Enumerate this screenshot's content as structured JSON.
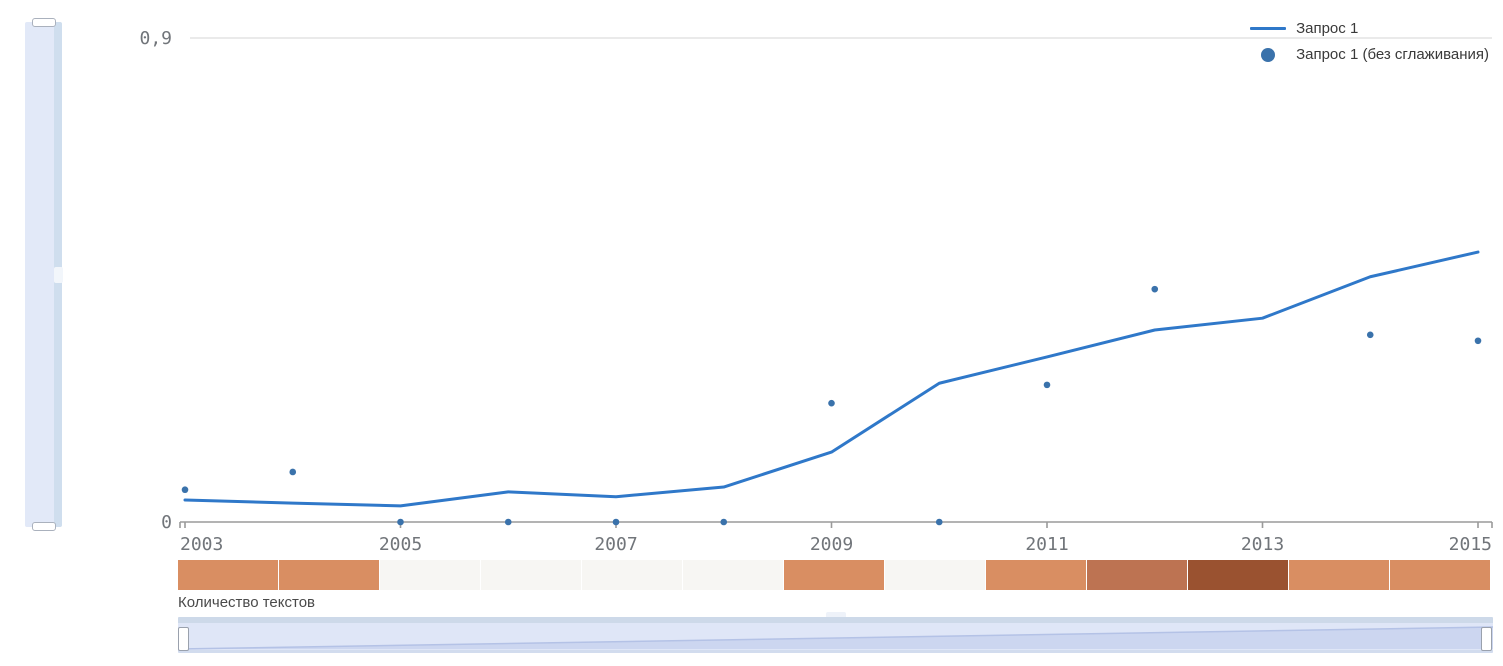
{
  "legend": {
    "items": [
      {
        "label": "Запрос 1"
      },
      {
        "label": "Запрос 1 (без сглаживания)"
      }
    ]
  },
  "chart_data": {
    "type": "line",
    "title": "",
    "xlabel": "",
    "ylabel": "",
    "x": [
      2003,
      2004,
      2005,
      2006,
      2007,
      2008,
      2009,
      2010,
      2011,
      2012,
      2013,
      2014,
      2015
    ],
    "series": [
      {
        "name": "Запрос 1",
        "type": "line",
        "color": "#2f78c9",
        "values": [
          0.041,
          0.035,
          0.03,
          0.056,
          0.047,
          0.065,
          0.13,
          0.258,
          0.307,
          0.357,
          0.379,
          0.456,
          0.502
        ]
      },
      {
        "name": "Запрос 1 (без сглаживания)",
        "type": "scatter",
        "color": "#3a72ab",
        "values": [
          0.06,
          0.093,
          0,
          0,
          0,
          0,
          0.221,
          0,
          0.255,
          0.433,
          null,
          0.348,
          0.337
        ]
      }
    ],
    "ylim": [
      0,
      0.9
    ],
    "yticks": [
      {
        "value": 0.9,
        "label": "0,9"
      },
      {
        "value": 0,
        "label": "0"
      }
    ],
    "xticks": [
      2003,
      2005,
      2007,
      2009,
      2011,
      2013,
      2015
    ],
    "grid": "single horizontal gridline at top (0,9)",
    "legend_position": "top-right",
    "text_counts": {
      "label": "Количество текстов",
      "palette": {
        "0": "#f7f6f3",
        "2": "#d98e62",
        "3": "#bd7352",
        "4": "#9a5230"
      },
      "cells": [
        {
          "year": 2003,
          "level": 2
        },
        {
          "year": 2004,
          "level": 2
        },
        {
          "year": 2005,
          "level": 0
        },
        {
          "year": 2006,
          "level": 0
        },
        {
          "year": 2007,
          "level": 0
        },
        {
          "year": 2008,
          "level": 0
        },
        {
          "year": 2009,
          "level": 2
        },
        {
          "year": 2010,
          "level": 0
        },
        {
          "year": 2011,
          "level": 2
        },
        {
          "year": 2012,
          "level": 3
        },
        {
          "year": 2013,
          "level": 4
        },
        {
          "year": 2014,
          "level": 2
        },
        {
          "year": 2015,
          "level": 2
        }
      ]
    }
  }
}
